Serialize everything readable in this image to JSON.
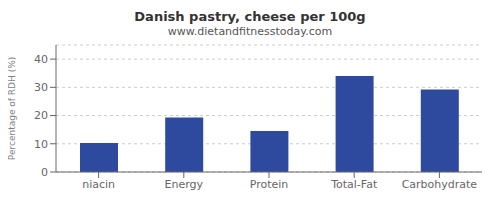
{
  "chart_data": {
    "type": "bar",
    "title": "Danish pastry, cheese per 100g",
    "subtitle": "www.dietandfitnesstoday.com",
    "categories": [
      "niacin",
      "Energy",
      "Protein",
      "Total-Fat",
      "Carbohydrate"
    ],
    "values": [
      10.3,
      19.3,
      14.5,
      34.0,
      29.2
    ],
    "color": "#2e4a9e",
    "ylabel": "Percentage of RDH (%)",
    "ylim": [
      0,
      45
    ],
    "yticks": [
      0,
      10,
      20,
      30,
      40
    ],
    "grid": true
  }
}
